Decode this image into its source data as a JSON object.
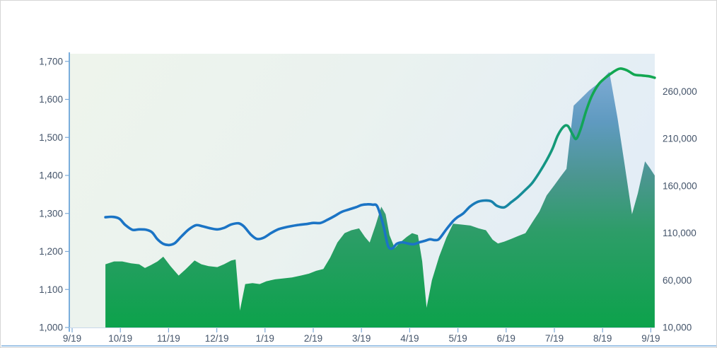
{
  "colors": {
    "axis_text": "#44546a",
    "axis_line": "#5b9bd5",
    "tick_mark": "#7ca9d6",
    "bottom_rule": "#9fc4e6",
    "line_blue": "#1b74c5",
    "line_teal": "#15918f",
    "line_green": "#12a751",
    "area_top_blue": "#8ab2dc",
    "area_mid_teal": "#4b9690",
    "area_bottom_green": "#0ca24b",
    "plot_bg_left": "#eef4ec",
    "plot_bg_mid": "#eaf2ef",
    "plot_bg_right": "#e3edf6"
  },
  "chart_data": {
    "type": "combo",
    "title": "",
    "grid": "off",
    "legend": "none",
    "x_axis": {
      "tick_labels": [
        "9/19",
        "10/19",
        "11/19",
        "12/19",
        "1/19",
        "2/19",
        "3/19",
        "4/19",
        "5/19",
        "6/19",
        "7/19",
        "8/19",
        "9/19"
      ],
      "note": "ticks are evenly spaced months; data begins about 0.7 month after the first tick"
    },
    "left_axis": {
      "min": 1000,
      "max": 1720,
      "tick_values": [
        1000,
        1100,
        1200,
        1300,
        1400,
        1500,
        1600,
        1700
      ],
      "tick_labels": [
        "1,000",
        "1,100",
        "1,200",
        "1,300",
        "1,400",
        "1,500",
        "1,600",
        "1,700"
      ]
    },
    "right_axis": {
      "min": 10000,
      "max": 300000,
      "tick_values": [
        10000,
        60000,
        110000,
        160000,
        210000,
        260000
      ],
      "tick_labels": [
        "10,000",
        "60,000",
        "110,000",
        "160,000",
        "210,000",
        "260,000"
      ]
    },
    "series": [
      {
        "name": "smoothed-line",
        "type": "line",
        "axis": "left",
        "style": "stroke fades from blue (left) to green (right), transition around month 9.5-10.5",
        "points": [
          [
            0.69,
            1290
          ],
          [
            0.84,
            1291
          ],
          [
            0.98,
            1286
          ],
          [
            1.1,
            1270
          ],
          [
            1.25,
            1257
          ],
          [
            1.39,
            1258
          ],
          [
            1.54,
            1257
          ],
          [
            1.66,
            1250
          ],
          [
            1.77,
            1232
          ],
          [
            1.89,
            1220
          ],
          [
            2.01,
            1217
          ],
          [
            2.13,
            1222
          ],
          [
            2.27,
            1240
          ],
          [
            2.42,
            1258
          ],
          [
            2.57,
            1269
          ],
          [
            2.71,
            1266
          ],
          [
            2.86,
            1261
          ],
          [
            3.01,
            1258
          ],
          [
            3.15,
            1262
          ],
          [
            3.3,
            1271
          ],
          [
            3.45,
            1274
          ],
          [
            3.56,
            1266
          ],
          [
            3.71,
            1244
          ],
          [
            3.83,
            1233
          ],
          [
            3.97,
            1236
          ],
          [
            4.12,
            1248
          ],
          [
            4.27,
            1258
          ],
          [
            4.41,
            1263
          ],
          [
            4.56,
            1267
          ],
          [
            4.71,
            1270
          ],
          [
            4.85,
            1272
          ],
          [
            5.0,
            1275
          ],
          [
            5.15,
            1275
          ],
          [
            5.29,
            1283
          ],
          [
            5.44,
            1293
          ],
          [
            5.59,
            1304
          ],
          [
            5.73,
            1310
          ],
          [
            5.88,
            1316
          ],
          [
            6.0,
            1322
          ],
          [
            6.11,
            1324
          ],
          [
            6.23,
            1323
          ],
          [
            6.33,
            1318
          ],
          [
            6.45,
            1270
          ],
          [
            6.55,
            1215
          ],
          [
            6.64,
            1208
          ],
          [
            6.73,
            1220
          ],
          [
            6.85,
            1224
          ],
          [
            6.96,
            1221
          ],
          [
            7.08,
            1219
          ],
          [
            7.2,
            1224
          ],
          [
            7.32,
            1228
          ],
          [
            7.42,
            1232
          ],
          [
            7.52,
            1230
          ],
          [
            7.61,
            1233
          ],
          [
            7.76,
            1258
          ],
          [
            7.9,
            1280
          ],
          [
            7.99,
            1290
          ],
          [
            8.11,
            1300
          ],
          [
            8.25,
            1318
          ],
          [
            8.4,
            1330
          ],
          [
            8.55,
            1334
          ],
          [
            8.69,
            1332
          ],
          [
            8.81,
            1320
          ],
          [
            8.96,
            1316
          ],
          [
            9.11,
            1330
          ],
          [
            9.25,
            1344
          ],
          [
            9.4,
            1362
          ],
          [
            9.54,
            1380
          ],
          [
            9.69,
            1408
          ],
          [
            9.84,
            1440
          ],
          [
            9.96,
            1470
          ],
          [
            10.07,
            1505
          ],
          [
            10.19,
            1528
          ],
          [
            10.28,
            1530
          ],
          [
            10.37,
            1510
          ],
          [
            10.45,
            1496
          ],
          [
            10.54,
            1520
          ],
          [
            10.66,
            1570
          ],
          [
            10.78,
            1610
          ],
          [
            10.92,
            1640
          ],
          [
            11.07,
            1658
          ],
          [
            11.22,
            1672
          ],
          [
            11.36,
            1681
          ],
          [
            11.51,
            1676
          ],
          [
            11.66,
            1665
          ],
          [
            11.8,
            1663
          ],
          [
            11.95,
            1661
          ],
          [
            12.08,
            1657
          ]
        ]
      },
      {
        "name": "gradient-area",
        "type": "area",
        "axis": "right",
        "style": "sharp-vertex area; fill is vertical gradient blue at plot top through teal to green at plot bottom",
        "points": [
          [
            0.69,
            77000
          ],
          [
            0.87,
            80000
          ],
          [
            1.04,
            80000
          ],
          [
            1.22,
            78000
          ],
          [
            1.39,
            77000
          ],
          [
            1.51,
            73000
          ],
          [
            1.63,
            76000
          ],
          [
            1.77,
            80000
          ],
          [
            1.89,
            85000
          ],
          [
            2.04,
            75000
          ],
          [
            2.21,
            65000
          ],
          [
            2.36,
            72000
          ],
          [
            2.54,
            81000
          ],
          [
            2.68,
            77000
          ],
          [
            2.83,
            75000
          ],
          [
            3.01,
            74000
          ],
          [
            3.15,
            77000
          ],
          [
            3.3,
            81000
          ],
          [
            3.39,
            82000
          ],
          [
            3.48,
            28000
          ],
          [
            3.59,
            56000
          ],
          [
            3.74,
            57000
          ],
          [
            3.89,
            56000
          ],
          [
            4.03,
            59000
          ],
          [
            4.21,
            61000
          ],
          [
            4.38,
            62000
          ],
          [
            4.56,
            63000
          ],
          [
            4.74,
            65000
          ],
          [
            4.91,
            67000
          ],
          [
            5.06,
            70000
          ],
          [
            5.21,
            72000
          ],
          [
            5.35,
            84000
          ],
          [
            5.5,
            100000
          ],
          [
            5.65,
            110000
          ],
          [
            5.79,
            113000
          ],
          [
            5.95,
            115000
          ],
          [
            6.07,
            106000
          ],
          [
            6.17,
            100000
          ],
          [
            6.29,
            118000
          ],
          [
            6.41,
            138000
          ],
          [
            6.5,
            130000
          ],
          [
            6.58,
            108000
          ],
          [
            6.69,
            94000
          ],
          [
            6.8,
            100000
          ],
          [
            6.94,
            106000
          ],
          [
            7.05,
            110000
          ],
          [
            7.17,
            108000
          ],
          [
            7.26,
            80000
          ],
          [
            7.35,
            31000
          ],
          [
            7.46,
            60000
          ],
          [
            7.61,
            85000
          ],
          [
            7.76,
            105000
          ],
          [
            7.9,
            120000
          ],
          [
            8.08,
            119000
          ],
          [
            8.26,
            118000
          ],
          [
            8.43,
            115000
          ],
          [
            8.58,
            113000
          ],
          [
            8.72,
            103000
          ],
          [
            8.83,
            99000
          ],
          [
            8.96,
            101000
          ],
          [
            9.11,
            104000
          ],
          [
            9.25,
            107000
          ],
          [
            9.4,
            110000
          ],
          [
            9.55,
            122000
          ],
          [
            9.69,
            133000
          ],
          [
            9.84,
            150000
          ],
          [
            9.99,
            160000
          ],
          [
            10.13,
            170000
          ],
          [
            10.25,
            178000
          ],
          [
            10.4,
            245000
          ],
          [
            10.54,
            252000
          ],
          [
            10.72,
            261000
          ],
          [
            10.92,
            269000
          ],
          [
            11.14,
            281000
          ],
          [
            11.31,
            232000
          ],
          [
            11.45,
            185000
          ],
          [
            11.61,
            130000
          ],
          [
            11.73,
            152000
          ],
          [
            11.88,
            186000
          ],
          [
            11.98,
            179000
          ],
          [
            12.08,
            171000
          ]
        ]
      }
    ]
  }
}
